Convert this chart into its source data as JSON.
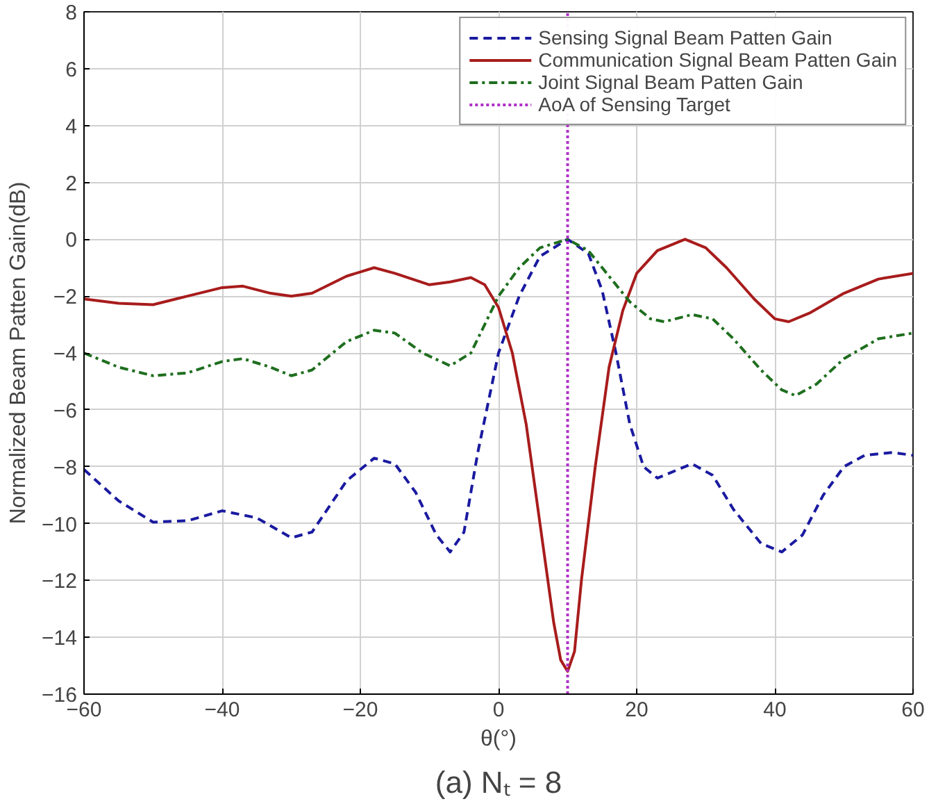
{
  "chart_data": {
    "type": "line",
    "xlabel": "θ(°)",
    "ylabel": "Normalized Beam Patten Gain(dB)",
    "xlim": [
      -60,
      60
    ],
    "xticks": [
      -60,
      -40,
      -20,
      0,
      20,
      40,
      60
    ],
    "ylim": [
      -16,
      8
    ],
    "yticks": [
      -16,
      -14,
      -12,
      -10,
      -8,
      -6,
      -4,
      -2,
      0,
      2,
      4,
      6,
      8
    ],
    "grid": true,
    "legend": "top right",
    "marker": "none",
    "annotations": [
      "(a) Nₜ = 8"
    ],
    "series": [
      {
        "name": "Sensing Signal Beam Patten Gain",
        "color": "#1a1aa0",
        "line_style": "dashed",
        "x": [
          -60,
          -55,
          -50,
          -45,
          -40,
          -35,
          -30,
          -27,
          -22,
          -18,
          -15,
          -12,
          -9,
          -7,
          -5,
          -3,
          0,
          3,
          6,
          10,
          13,
          15,
          17,
          19,
          21,
          23,
          25,
          28,
          31,
          34,
          38,
          41,
          44,
          47,
          50,
          53,
          57,
          60
        ],
        "values": [
          -8.1,
          -9.2,
          -9.95,
          -9.9,
          -9.55,
          -9.8,
          -10.5,
          -10.3,
          -8.5,
          -7.7,
          -7.9,
          -8.9,
          -10.4,
          -11.0,
          -10.3,
          -7.5,
          -4,
          -2,
          -0.6,
          0,
          -0.5,
          -1.8,
          -4,
          -6.5,
          -8.0,
          -8.4,
          -8.2,
          -7.9,
          -8.3,
          -9.5,
          -10.7,
          -11.0,
          -10.4,
          -9.0,
          -8.0,
          -7.6,
          -7.5,
          -7.6
        ]
      },
      {
        "name": "Communication Signal Beam Patten Gain",
        "color": "#a81c1c",
        "line_style": "solid",
        "x": [
          -60,
          -55,
          -50,
          -45,
          -40,
          -37,
          -33,
          -30,
          -27,
          -22,
          -18,
          -15,
          -10,
          -7,
          -4,
          -2,
          0,
          2,
          4,
          6,
          8,
          9,
          10,
          11,
          12,
          14,
          16,
          18,
          20,
          23,
          27,
          30,
          33,
          37,
          40,
          42,
          45,
          50,
          55,
          60
        ],
        "values": [
          -2.1,
          -2.25,
          -2.3,
          -2.0,
          -1.7,
          -1.65,
          -1.9,
          -2.0,
          -1.9,
          -1.3,
          -1.0,
          -1.2,
          -1.6,
          -1.5,
          -1.35,
          -1.6,
          -2.4,
          -4.0,
          -6.5,
          -10,
          -13.5,
          -14.8,
          -15.2,
          -14.5,
          -12,
          -8,
          -4.5,
          -2.5,
          -1.2,
          -0.4,
          0,
          -0.3,
          -1.0,
          -2.1,
          -2.8,
          -2.9,
          -2.6,
          -1.9,
          -1.4,
          -1.2
        ]
      },
      {
        "name": "Joint Signal Beam Patten Gain",
        "color": "#1e6e1e",
        "line_style": "dashdot",
        "x": [
          -60,
          -55,
          -50,
          -45,
          -40,
          -37,
          -33,
          -30,
          -27,
          -22,
          -18,
          -15,
          -11,
          -7,
          -4,
          -2,
          0,
          3,
          6,
          10,
          13,
          16,
          19,
          22,
          24,
          28,
          31,
          34,
          38,
          41,
          43,
          46,
          50,
          55,
          60
        ],
        "values": [
          -4.0,
          -4.5,
          -4.8,
          -4.7,
          -4.3,
          -4.2,
          -4.5,
          -4.8,
          -4.6,
          -3.6,
          -3.2,
          -3.3,
          -4.0,
          -4.45,
          -4.0,
          -3.0,
          -2.0,
          -1.0,
          -0.3,
          0,
          -0.4,
          -1.3,
          -2.2,
          -2.8,
          -2.9,
          -2.65,
          -2.8,
          -3.5,
          -4.6,
          -5.3,
          -5.5,
          -5.1,
          -4.2,
          -3.5,
          -3.3
        ]
      }
    ],
    "ref_lines": [
      {
        "axis": "x",
        "value": 10,
        "label": "AoA of Sensing Target",
        "color": "#b030c8",
        "line_style": "dotted"
      }
    ]
  }
}
